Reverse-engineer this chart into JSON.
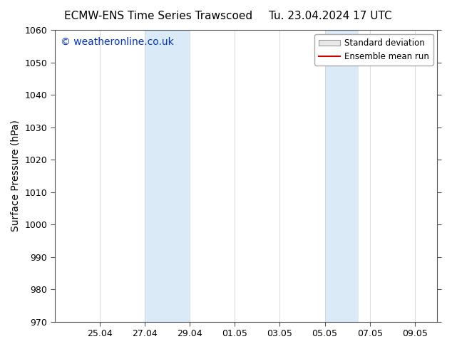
{
  "title_left": "ECMW-ENS Time Series Trawscoed",
  "title_right": "Tu. 23.04.2024 17 UTC",
  "ylabel": "Surface Pressure (hPa)",
  "ylim": [
    970,
    1060
  ],
  "yticks": [
    970,
    980,
    990,
    1000,
    1010,
    1020,
    1030,
    1040,
    1050,
    1060
  ],
  "xtick_labels": [
    "25.04",
    "27.04",
    "29.04",
    "01.05",
    "03.05",
    "05.05",
    "07.05",
    "09.05"
  ],
  "xtick_positions": [
    2,
    4,
    6,
    8,
    10,
    12,
    14,
    16
  ],
  "xlim": [
    0,
    17
  ],
  "shaded_regions": [
    {
      "x_start": 4,
      "x_end": 6
    },
    {
      "x_start": 12,
      "x_end": 13.5
    }
  ],
  "shaded_color": "#daeaf7",
  "watermark_text": "© weatheronline.co.uk",
  "watermark_color": "#0033cc",
  "watermark_fontsize": 10,
  "legend_std_label": "Standard deviation",
  "legend_ens_label": "Ensemble mean run",
  "legend_std_facecolor": "#e8e8e8",
  "legend_std_edgecolor": "#999999",
  "legend_ens_color": "#cc0000",
  "background_color": "#ffffff",
  "title_fontsize": 11,
  "axis_label_fontsize": 10,
  "tick_fontsize": 9,
  "legend_fontsize": 8.5
}
